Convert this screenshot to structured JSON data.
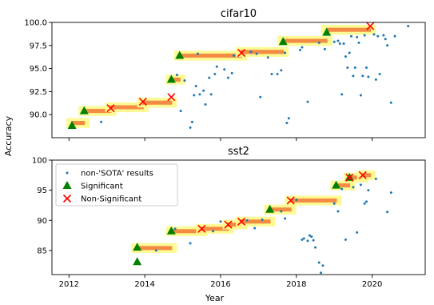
{
  "chart_data": [
    {
      "type": "scatter",
      "title": "cifar10",
      "ylabel": "Accuracy",
      "xlabel": "",
      "xlim": [
        2011.55,
        2021.4
      ],
      "ylim": [
        87.5,
        100.0
      ],
      "yticks": [
        90.0,
        92.5,
        95.0,
        97.5,
        100.0
      ],
      "ytick_labels": [
        "90.0",
        "92.5",
        "95.0",
        "97.5",
        "100.0"
      ],
      "xticks": [
        2012,
        2014,
        2016,
        2018,
        2020
      ],
      "xtick_labels": [],
      "sota_bands": [
        {
          "x0": 2012.08,
          "x1": 2012.4,
          "y": 89.1
        },
        {
          "x0": 2012.4,
          "x1": 2013.1,
          "y": 90.4
        },
        {
          "x0": 2013.1,
          "x1": 2013.95,
          "y": 90.8
        },
        {
          "x0": 2013.95,
          "x1": 2014.7,
          "y": 91.3
        },
        {
          "x0": 2014.7,
          "x1": 2014.92,
          "y": 93.8
        },
        {
          "x0": 2014.92,
          "x1": 2016.55,
          "y": 96.4
        },
        {
          "x0": 2016.55,
          "x1": 2017.65,
          "y": 96.8
        },
        {
          "x0": 2017.65,
          "x1": 2018.8,
          "y": 98.0
        },
        {
          "x0": 2018.8,
          "x1": 2019.95,
          "y": 99.2
        }
      ],
      "significant": {
        "x": [
          2012.08,
          2012.4,
          2014.7,
          2014.92,
          2017.65,
          2018.8
        ],
        "y": [
          88.8,
          90.4,
          93.8,
          96.4,
          97.9,
          98.9
        ]
      },
      "non_significant": {
        "x": [
          2013.1,
          2013.95,
          2014.7,
          2016.55,
          2019.95
        ],
        "y": [
          90.7,
          91.4,
          91.9,
          96.7,
          99.6
        ]
      },
      "non_sota": {
        "x": [
          2012.85,
          2014.85,
          2014.95,
          2015.05,
          2015.2,
          2015.25,
          2015.3,
          2015.35,
          2015.4,
          2015.45,
          2015.55,
          2015.6,
          2015.7,
          2015.75,
          2015.85,
          2015.9,
          2016.1,
          2016.2,
          2016.3,
          2016.35,
          2016.8,
          2016.95,
          2017.05,
          2017.25,
          2017.35,
          2017.5,
          2017.6,
          2017.7,
          2017.75,
          2017.8,
          2018.1,
          2018.15,
          2018.3,
          2018.6,
          2018.75,
          2019.0,
          2019.1,
          2019.15,
          2019.2,
          2019.25,
          2019.3,
          2019.35,
          2019.4,
          2019.45,
          2019.5,
          2019.55,
          2019.6,
          2019.65,
          2019.7,
          2019.75,
          2019.8,
          2019.85,
          2019.9,
          2020.05,
          2020.1,
          2020.15,
          2020.2,
          2020.3,
          2020.35,
          2020.4,
          2020.5,
          2020.6,
          2020.95
        ],
        "y": [
          89.2,
          94.3,
          90.4,
          93.7,
          88.6,
          89.2,
          92.1,
          93.1,
          96.6,
          92.2,
          92.6,
          91.1,
          94.0,
          92.2,
          94.4,
          95.2,
          94.9,
          94.0,
          94.5,
          96.4,
          96.8,
          96.6,
          91.9,
          96.2,
          94.4,
          94.4,
          94.8,
          96.7,
          89.1,
          89.6,
          97.0,
          97.3,
          91.4,
          97.8,
          97.1,
          97.9,
          98.0,
          97.7,
          92.2,
          97.7,
          96.3,
          95.1,
          96.7,
          98.5,
          94.2,
          95.1,
          98.4,
          97.8,
          92.1,
          94.2,
          98.6,
          95.1,
          94.1,
          98.7,
          93.8,
          98.5,
          94.4,
          98.6,
          98.2,
          97.5,
          91.3,
          98.5,
          99.6
        ]
      }
    },
    {
      "type": "scatter",
      "title": "sst2",
      "ylabel": "",
      "xlabel": "Year",
      "xlim": [
        2011.55,
        2021.4
      ],
      "ylim": [
        81.0,
        100.0
      ],
      "yticks": [
        85,
        90,
        95,
        100
      ],
      "ytick_labels": [
        "85",
        "90",
        "95",
        "100"
      ],
      "xticks": [
        2012,
        2014,
        2016,
        2018,
        2020
      ],
      "xtick_labels": [
        "2012",
        "2014",
        "2016",
        "2018",
        "2020"
      ],
      "legend": {
        "placement": "upper left",
        "entries": [
          "non-'SOTA' results",
          "Significant",
          "Non-Significant"
        ]
      },
      "sota_bands": [
        {
          "x0": 2013.8,
          "x1": 2014.7,
          "y": 85.4
        },
        {
          "x0": 2014.7,
          "x1": 2015.5,
          "y": 88.2
        },
        {
          "x0": 2015.5,
          "x1": 2016.2,
          "y": 88.6
        },
        {
          "x0": 2016.2,
          "x1": 2016.55,
          "y": 89.3
        },
        {
          "x0": 2016.55,
          "x1": 2017.3,
          "y": 89.8
        },
        {
          "x0": 2017.3,
          "x1": 2017.85,
          "y": 91.8
        },
        {
          "x0": 2017.85,
          "x1": 2019.05,
          "y": 93.3
        },
        {
          "x0": 2019.05,
          "x1": 2019.4,
          "y": 95.8
        },
        {
          "x0": 2019.4,
          "x1": 2019.75,
          "y": 97.1
        },
        {
          "x0": 2019.75,
          "x1": 2019.95,
          "y": 97.5
        }
      ],
      "significant": {
        "x": [
          2013.8,
          2013.8,
          2014.7,
          2017.3,
          2019.05,
          2019.4
        ],
        "y": [
          83.1,
          85.5,
          88.2,
          91.8,
          95.8,
          97.1
        ]
      },
      "non_significant": {
        "x": [
          2015.5,
          2016.2,
          2016.55,
          2017.85,
          2019.4,
          2019.75
        ],
        "y": [
          88.6,
          89.3,
          89.8,
          93.3,
          97.1,
          97.5
        ]
      },
      "non_sota": {
        "x": [
          2014.3,
          2014.8,
          2015.2,
          2015.8,
          2016.0,
          2016.7,
          2016.9,
          2017.1,
          2017.6,
          2017.7,
          2018.0,
          2018.15,
          2018.2,
          2018.3,
          2018.35,
          2018.4,
          2018.45,
          2018.5,
          2018.6,
          2018.65,
          2018.7,
          2019.0,
          2019.1,
          2019.2,
          2019.3,
          2019.5,
          2019.6,
          2019.7,
          2019.8,
          2019.85,
          2019.9,
          2020.1,
          2020.4,
          2020.5
        ],
        "y": [
          85.0,
          88.6,
          86.2,
          88.2,
          89.8,
          90.0,
          88.7,
          90.1,
          91.5,
          90.3,
          93.4,
          86.8,
          87.0,
          86.6,
          87.5,
          87.3,
          86.7,
          85.5,
          83.0,
          81.3,
          82.5,
          92.8,
          91.5,
          95.2,
          86.8,
          95.5,
          88.0,
          95.9,
          92.8,
          93.1,
          95.0,
          96.9,
          91.4,
          94.6
        ]
      }
    }
  ]
}
